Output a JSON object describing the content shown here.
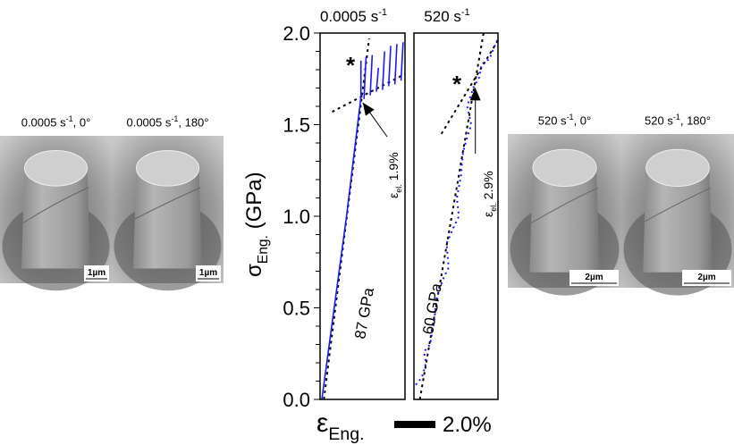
{
  "images": [
    {
      "label_rate": "0.0005 s",
      "label_exp": "-1",
      "label_angle": ", 0°",
      "scale_bar": "1µm"
    },
    {
      "label_rate": "0.0005 s",
      "label_exp": "-1",
      "label_angle": ", 180°",
      "scale_bar": "1µm"
    },
    {
      "label_rate": "520 s",
      "label_exp": "-1",
      "label_angle": ", 0°",
      "scale_bar": "2µm"
    },
    {
      "label_rate": "520 s",
      "label_exp": "-1",
      "label_angle": ", 180°",
      "scale_bar": "2µm"
    }
  ],
  "chart_data": {
    "type": "line",
    "ylabel_symbol": "σ",
    "ylabel_sub": "Eng.",
    "ylabel_unit": "(GPa)",
    "xlabel_symbol": "ε",
    "xlabel_sub": "Eng.",
    "x_scale_bar_label": "2.0%",
    "ylim": [
      0,
      2.0
    ],
    "yticks": [
      "0.0",
      "0.5",
      "1.0",
      "1.5",
      "2.0"
    ],
    "ytick_values": [
      0,
      0.5,
      1.0,
      1.5,
      2.0
    ],
    "y_minor_step": 0.1,
    "series_color": "#1a1aff",
    "fit_color": "#000000",
    "panels": [
      {
        "title_rate": "0.0005 s",
        "title_exp": "-1",
        "xlim_percent": [
          0,
          4.1
        ],
        "line_style": "solid",
        "series": [
          [
            0,
            0
          ],
          [
            1.2,
            1.0
          ],
          [
            1.9,
            1.65
          ],
          [
            1.9,
            1.85
          ]
        ],
        "serrations": [
          [
            2.05,
            1.64,
            2.15,
            1.87
          ],
          [
            2.35,
            1.66,
            2.45,
            1.88
          ],
          [
            2.65,
            1.68,
            2.75,
            1.81
          ],
          [
            2.95,
            1.69,
            3.05,
            1.9
          ],
          [
            3.25,
            1.71,
            3.35,
            1.93
          ],
          [
            3.55,
            1.72,
            3.65,
            1.94
          ],
          [
            3.85,
            1.74,
            3.95,
            1.95
          ]
        ],
        "elastic_fit": [
          [
            0.1,
            0
          ],
          [
            2.3,
            1.97
          ]
        ],
        "plastic_fit": [
          [
            0.5,
            1.57
          ],
          [
            4.1,
            1.78
          ]
        ],
        "modulus_label": "87 GPa",
        "yield_label_sub": "el.",
        "yield_label_value": "1.9%",
        "yield_point": [
          1.9,
          1.65
        ]
      },
      {
        "title_rate": "520 s",
        "title_exp": "-1",
        "xlim_percent": [
          0,
          4.1
        ],
        "line_style": "dotted",
        "series": [
          [
            0,
            0.08
          ],
          [
            0.3,
            0.12
          ],
          [
            0.5,
            0.2
          ],
          [
            0.4,
            0.26
          ],
          [
            0.7,
            0.3
          ],
          [
            0.9,
            0.43
          ],
          [
            1.0,
            0.55
          ],
          [
            1.3,
            0.65
          ],
          [
            1.6,
            0.72
          ],
          [
            1.5,
            0.85
          ],
          [
            1.8,
            0.93
          ],
          [
            2.1,
            1.0
          ],
          [
            2.0,
            1.1
          ],
          [
            2.2,
            1.22
          ],
          [
            2.3,
            1.35
          ],
          [
            2.5,
            1.43
          ],
          [
            2.7,
            1.5
          ],
          [
            2.5,
            1.6
          ],
          [
            2.8,
            1.7
          ],
          [
            3.1,
            1.76
          ],
          [
            3.2,
            1.83
          ],
          [
            3.6,
            1.86
          ],
          [
            3.8,
            1.92
          ],
          [
            4.0,
            1.97
          ]
        ],
        "elastic_fit": [
          [
            0.2,
            0
          ],
          [
            3.3,
            2.0
          ]
        ],
        "plastic_fit": [
          [
            1.25,
            1.45
          ],
          [
            4.0,
            1.96
          ]
        ],
        "modulus_label": "60 GPa",
        "yield_label_sub": "el.",
        "yield_label_value": "2.9%",
        "yield_point": [
          2.9,
          1.73
        ]
      }
    ]
  }
}
